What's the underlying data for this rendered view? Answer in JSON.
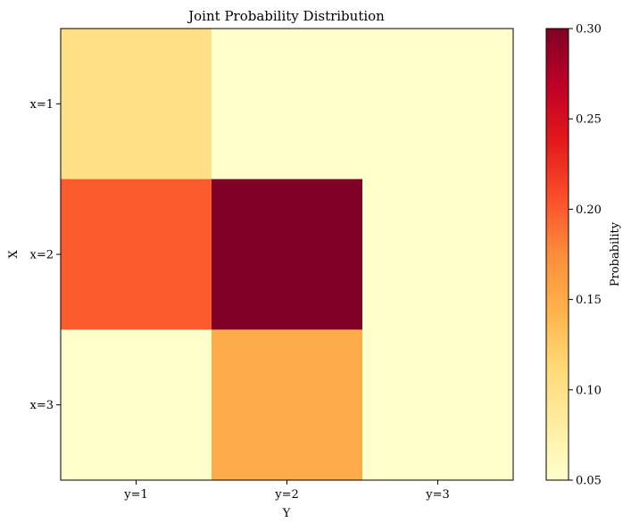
{
  "chart_data": {
    "type": "heatmap",
    "title": "Joint Probability Distribution",
    "xlabel": "Y",
    "ylabel": "X",
    "x_categories": [
      "y=1",
      "y=2",
      "y=3"
    ],
    "y_categories": [
      "x=1",
      "x=2",
      "x=3"
    ],
    "values": [
      [
        0.1,
        0.05,
        0.05
      ],
      [
        0.2,
        0.3,
        0.05
      ],
      [
        0.05,
        0.15,
        0.05
      ]
    ],
    "colorbar": {
      "label": "Probability",
      "range": [
        0.05,
        0.3
      ],
      "ticks": [
        0.05,
        0.1,
        0.15,
        0.2,
        0.25,
        0.3
      ],
      "tick_labels": [
        "0.05",
        "0.10",
        "0.15",
        "0.20",
        "0.25",
        "0.30"
      ],
      "colormap": "YlOrRd",
      "stops": [
        "#ffffcc",
        "#ffeda0",
        "#fed976",
        "#feb24c",
        "#fd8d3c",
        "#fc4e2a",
        "#e31a1c",
        "#bd0026",
        "#800026"
      ]
    }
  }
}
